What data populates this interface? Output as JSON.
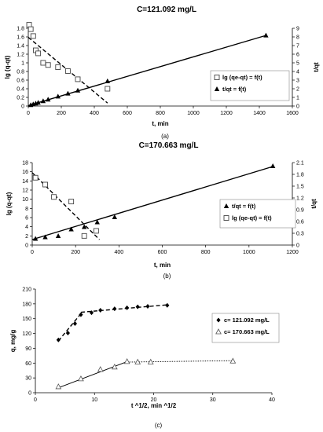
{
  "chart_data": [
    {
      "id": "a",
      "type": "scatter",
      "title": "C=121.092 mg/L",
      "caption": "(a)",
      "xlabel": "t, min",
      "ylabel_left": "lg (q-qt)",
      "ylabel_right": "t/qt",
      "xlim": [
        0,
        1600
      ],
      "xticks": [
        0,
        200,
        400,
        600,
        800,
        1000,
        1200,
        1400,
        1600
      ],
      "ylim_left": [
        0,
        1.8
      ],
      "yticks_left": [
        0,
        0.2,
        0.4,
        0.6,
        0.8,
        1,
        1.2,
        1.4,
        1.6,
        1.8
      ],
      "ylim_right": [
        0,
        9
      ],
      "yticks_right": [
        0,
        1,
        2,
        3,
        4,
        5,
        6,
        7,
        8,
        9
      ],
      "legend_position": "center-right",
      "series": [
        {
          "name": "lg (qe-qt) = f(t)",
          "axis": "left",
          "marker": "square",
          "x": [
            5,
            15,
            30,
            45,
            60,
            90,
            120,
            180,
            240,
            300,
            480
          ],
          "y": [
            1.88,
            1.78,
            1.62,
            1.29,
            1.22,
            1.0,
            0.95,
            0.9,
            0.81,
            0.62,
            0.4
          ],
          "fit_line": {
            "style": "dashed",
            "x": [
              0,
              480
            ],
            "y": [
              1.59,
              0.07
            ]
          }
        },
        {
          "name": "t/qt = f(t)",
          "axis": "right",
          "marker": "triangle",
          "x": [
            15,
            30,
            45,
            60,
            90,
            120,
            180,
            240,
            300,
            480,
            1440
          ],
          "y": [
            0.11,
            0.21,
            0.3,
            0.39,
            0.57,
            0.75,
            1.1,
            1.44,
            1.8,
            2.88,
            8.17
          ],
          "fit_line": {
            "style": "solid",
            "x": [
              0,
              1440
            ],
            "y": [
              0.05,
              8.17
            ]
          }
        }
      ]
    },
    {
      "id": "b",
      "type": "scatter",
      "title": "C=170.663 mg/L",
      "caption": "(b)",
      "xlabel": "t, min",
      "ylabel_left": "lg (q-qt)",
      "ylabel_right": "t/qt",
      "xlim": [
        0,
        1200
      ],
      "xticks": [
        0,
        200,
        400,
        600,
        800,
        1000,
        1200
      ],
      "ylim_left": [
        0,
        18
      ],
      "yticks_left": [
        0,
        2,
        4,
        6,
        8,
        10,
        12,
        14,
        16,
        18
      ],
      "ylim_right": [
        0,
        2.1
      ],
      "yticks_right": [
        0,
        0.3,
        0.6,
        0.9,
        1.2,
        1.5,
        1.8,
        2.1
      ],
      "legend_position": "center-right",
      "series": [
        {
          "name": "t/qt = f(t)",
          "axis": "right",
          "marker": "triangle",
          "x": [
            15,
            60,
            120,
            180,
            240,
            300,
            380,
            1110
          ],
          "y": [
            0.16,
            0.2,
            0.23,
            0.4,
            0.46,
            0.58,
            0.71,
            2.01
          ],
          "fit_line": {
            "style": "solid",
            "x": [
              0,
              1110
            ],
            "y": [
              0.14,
              2.0
            ]
          }
        },
        {
          "name": "lg (qe-qt) = f(t)",
          "axis": "left",
          "marker": "square",
          "x": [
            15,
            60,
            100,
            180,
            240,
            295
          ],
          "y": [
            14.7,
            13.2,
            10.5,
            9.5,
            2.0,
            3.1
          ],
          "fit_line": {
            "style": "dashed",
            "x": [
              0,
              310
            ],
            "y": [
              15.8,
              1.2
            ]
          }
        }
      ]
    },
    {
      "id": "c",
      "type": "scatter",
      "title": "",
      "caption": "(c)",
      "xlabel": "t ^1/2, min ^1/2",
      "ylabel_left": "q, mg/g",
      "xlim": [
        0,
        40
      ],
      "xticks": [
        0,
        10,
        20,
        30,
        40
      ],
      "ylim_left": [
        0,
        210
      ],
      "yticks_left": [
        0,
        30,
        60,
        90,
        120,
        150,
        180,
        210
      ],
      "legend_position": "right",
      "series": [
        {
          "name": "c= 121.092 mg/L",
          "marker": "diamond",
          "x": [
            3.9,
            5.5,
            6.7,
            7.7,
            9.5,
            11.0,
            13.4,
            15.5,
            17.3,
            19.0,
            22.3
          ],
          "y": [
            107,
            121,
            140,
            158,
            162,
            167,
            170,
            172,
            174,
            175,
            177
          ],
          "fit_lines": [
            {
              "style": "dashed",
              "x": [
                3.9,
                7.7
              ],
              "y": [
                105,
                160
              ]
            },
            {
              "style": "dashed",
              "x": [
                7.7,
                22.3
              ],
              "y": [
                163,
                178
              ]
            }
          ]
        },
        {
          "name": "c= 170.663 mg/L",
          "marker": "open-triangle",
          "x": [
            3.9,
            7.7,
            11.0,
            13.4,
            15.5,
            17.3,
            19.5,
            33.4
          ],
          "y": [
            12,
            28,
            47,
            52,
            63,
            62,
            62,
            64
          ],
          "fit_lines": [
            {
              "style": "solid",
              "x": [
                3.9,
                15.5
              ],
              "y": [
                10,
                63
              ]
            },
            {
              "style": "dotted",
              "x": [
                15.5,
                33.4
              ],
              "y": [
                62,
                65
              ]
            }
          ]
        }
      ]
    }
  ]
}
